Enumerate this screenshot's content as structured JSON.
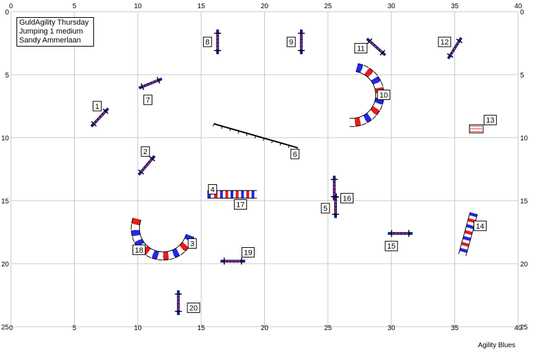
{
  "title_lines": [
    "GuldAgility Thursday",
    "Jumping 1 medium",
    "Sandy Ammerlaan"
  ],
  "footer_text": "Agility Blues",
  "grid": {
    "x_max": 40,
    "y_max": 25,
    "x_ticks": [
      0,
      5,
      10,
      15,
      20,
      25,
      30,
      35,
      40
    ],
    "y_ticks": [
      0,
      5,
      10,
      15,
      20,
      25
    ]
  },
  "colors": {
    "grid": "#c8c8c8",
    "pole_red": "#e03030",
    "wing_blue": "#0a1e8c",
    "tunnel_red": "#e81c1c",
    "tunnel_blue": "#2626e6",
    "label_bg": "#ffffff"
  },
  "obstacles": [
    {
      "number": "1",
      "type": "jump",
      "x": 7.0,
      "y": 8.4,
      "angle": -47,
      "label_x": 6.8,
      "label_y": 7.5
    },
    {
      "number": "2",
      "type": "jump",
      "x": 10.7,
      "y": 12.2,
      "angle": -50,
      "label_x": 10.6,
      "label_y": 11.1
    },
    {
      "number": "3",
      "type": "tunnel_curve",
      "cx": 12.0,
      "cy": 17.2,
      "r": 2.2,
      "a1": 15,
      "a2": 165,
      "label_x": 14.3,
      "label_y": 18.4
    },
    {
      "number": "4",
      "type": "tunnel_straight",
      "x1": 15.5,
      "y1": 14.5,
      "x2": 19.2,
      "y2": 14.5,
      "label_x": 15.9,
      "label_y": 14.1
    },
    {
      "number": "5",
      "type": "jump",
      "x": 25.6,
      "y": 15.4,
      "angle": 90,
      "label_x": 24.8,
      "label_y": 15.6
    },
    {
      "number": "6",
      "type": "dogwalk",
      "x1": 16.0,
      "y1": 8.9,
      "x2": 22.6,
      "y2": 10.8,
      "label_x": 22.4,
      "label_y": 11.3
    },
    {
      "number": "7",
      "type": "jump",
      "x": 11.0,
      "y": 5.7,
      "angle": -22,
      "label_x": 10.8,
      "label_y": 7.0
    },
    {
      "number": "8",
      "type": "jump",
      "x": 16.3,
      "y": 2.4,
      "angle": 90,
      "label_x": 15.5,
      "label_y": 2.4
    },
    {
      "number": "9",
      "type": "jump",
      "x": 22.9,
      "y": 2.4,
      "angle": 90,
      "label_x": 22.1,
      "label_y": 2.4
    },
    {
      "number": "10",
      "type": "tunnel_curve",
      "cx": 26.9,
      "cy": 6.6,
      "r": 2.2,
      "a1": -80,
      "a2": 95,
      "label_x": 29.4,
      "label_y": 6.6
    },
    {
      "number": "11",
      "type": "jump",
      "x": 28.8,
      "y": 2.8,
      "angle": 42,
      "label_x": 27.6,
      "label_y": 2.9
    },
    {
      "number": "12",
      "type": "jump",
      "x": 35.0,
      "y": 2.9,
      "angle": -58,
      "label_x": 34.2,
      "label_y": 2.4
    },
    {
      "number": "13",
      "type": "tire",
      "x": 36.7,
      "y": 9.3,
      "label_x": 37.8,
      "label_y": 8.6
    },
    {
      "number": "14",
      "type": "tunnel_straight",
      "x1": 36.5,
      "y1": 16.0,
      "x2": 35.6,
      "y2": 19.3,
      "label_x": 37.0,
      "label_y": 17.0
    },
    {
      "number": "15",
      "type": "jump",
      "x": 30.7,
      "y": 17.6,
      "angle": 0,
      "label_x": 30.0,
      "label_y": 18.6
    },
    {
      "number": "16",
      "type": "jump",
      "x": 25.5,
      "y": 14.0,
      "angle": 90,
      "label_x": 26.5,
      "label_y": 14.8
    },
    {
      "number": "17",
      "type": "tunnel_straight",
      "x1": 16.5,
      "y1": 14.5,
      "x2": 19.4,
      "y2": 14.5,
      "label_x": 18.1,
      "label_y": 15.3
    },
    {
      "number": "18",
      "type": "tunnel_curve",
      "cx": 12.0,
      "cy": 17.2,
      "r": 2.2,
      "a1": 165,
      "a2": 200,
      "label_x": 10.1,
      "label_y": 18.9
    },
    {
      "number": "19",
      "type": "jump",
      "x": 17.5,
      "y": 19.8,
      "angle": 0,
      "label_x": 18.7,
      "label_y": 19.1
    },
    {
      "number": "20",
      "type": "jump",
      "x": 13.2,
      "y": 23.1,
      "angle": 90,
      "label_x": 14.4,
      "label_y": 23.5
    }
  ]
}
